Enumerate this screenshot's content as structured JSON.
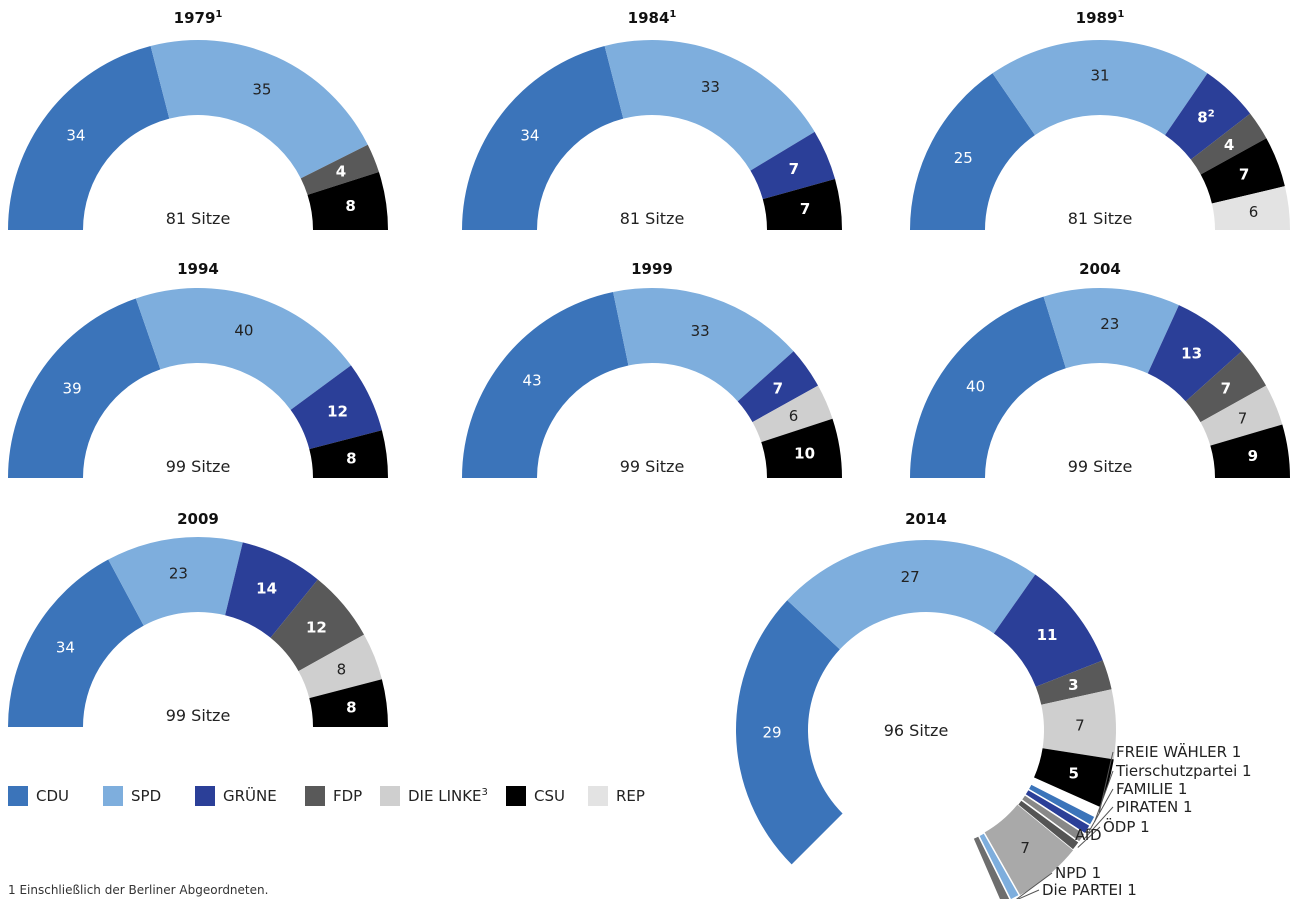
{
  "colors": {
    "CDU": "#3b74ba",
    "SPD": "#7eaedd",
    "GRÜNE": "#2b3f98",
    "FDP": "#595959",
    "DIE LINKE": "#cfcfcf",
    "CSU": "#000000",
    "REP": "#e3e3e3",
    "AfD": "#a9a9a9",
    "FREIE WÄHLER": "#ffffff",
    "Tierschutzpartei": "#3b74ba",
    "FAMILIE": "#2b3f98",
    "PIRATEN": "#888888",
    "ÖDP": "#555555",
    "NPD": "#7eaedd",
    "Die PARTEI": "#6e6e6e"
  },
  "legend": [
    {
      "key": "CDU",
      "label": "CDU",
      "sup": ""
    },
    {
      "key": "SPD",
      "label": "SPD",
      "sup": ""
    },
    {
      "key": "GRÜNE",
      "label": "GRÜNE",
      "sup": ""
    },
    {
      "key": "FDP",
      "label": "FDP",
      "sup": ""
    },
    {
      "key": "DIE LINKE",
      "label": "DIE LINKE",
      "sup": "3"
    },
    {
      "key": "CSU",
      "label": "CSU",
      "sup": ""
    },
    {
      "key": "REP",
      "label": "REP",
      "sup": ""
    }
  ],
  "footnote": "1  Einschließlich der Berliner Abgeordneten.",
  "chart_data": [
    {
      "type": "pie",
      "title": "1979",
      "title_sup": "1",
      "center_label": "81 Sitze",
      "slices": [
        {
          "party": "CDU",
          "value": 34
        },
        {
          "party": "SPD",
          "value": 35
        },
        {
          "party": "FDP",
          "value": 4
        },
        {
          "party": "CSU",
          "value": 8
        }
      ]
    },
    {
      "type": "pie",
      "title": "1984",
      "title_sup": "1",
      "center_label": "81 Sitze",
      "slices": [
        {
          "party": "CDU",
          "value": 34
        },
        {
          "party": "SPD",
          "value": 33
        },
        {
          "party": "GRÜNE",
          "value": 7
        },
        {
          "party": "CSU",
          "value": 7
        }
      ]
    },
    {
      "type": "pie",
      "title": "1989",
      "title_sup": "1",
      "center_label": "81 Sitze",
      "slices": [
        {
          "party": "CDU",
          "value": 25
        },
        {
          "party": "SPD",
          "value": 31
        },
        {
          "party": "GRÜNE",
          "value": 8,
          "label_sup": "2"
        },
        {
          "party": "FDP",
          "value": 4
        },
        {
          "party": "CSU",
          "value": 7
        },
        {
          "party": "REP",
          "value": 6
        }
      ]
    },
    {
      "type": "pie",
      "title": "1994",
      "title_sup": "",
      "center_label": "99 Sitze",
      "slices": [
        {
          "party": "CDU",
          "value": 39
        },
        {
          "party": "SPD",
          "value": 40
        },
        {
          "party": "GRÜNE",
          "value": 12
        },
        {
          "party": "CSU",
          "value": 8
        }
      ]
    },
    {
      "type": "pie",
      "title": "1999",
      "title_sup": "",
      "center_label": "99 Sitze",
      "slices": [
        {
          "party": "CDU",
          "value": 43
        },
        {
          "party": "SPD",
          "value": 33
        },
        {
          "party": "GRÜNE",
          "value": 7
        },
        {
          "party": "DIE LINKE",
          "value": 6
        },
        {
          "party": "CSU",
          "value": 10
        }
      ]
    },
    {
      "type": "pie",
      "title": "2004",
      "title_sup": "",
      "center_label": "99 Sitze",
      "slices": [
        {
          "party": "CDU",
          "value": 40
        },
        {
          "party": "SPD",
          "value": 23
        },
        {
          "party": "GRÜNE",
          "value": 13
        },
        {
          "party": "FDP",
          "value": 7
        },
        {
          "party": "DIE LINKE",
          "value": 7
        },
        {
          "party": "CSU",
          "value": 9
        }
      ]
    },
    {
      "type": "pie",
      "title": "2009",
      "title_sup": "",
      "center_label": "99 Sitze",
      "slices": [
        {
          "party": "CDU",
          "value": 34
        },
        {
          "party": "SPD",
          "value": 23
        },
        {
          "party": "GRÜNE",
          "value": 14
        },
        {
          "party": "FDP",
          "value": 12
        },
        {
          "party": "DIE LINKE",
          "value": 8
        },
        {
          "party": "CSU",
          "value": 8
        }
      ]
    },
    {
      "type": "pie",
      "title": "2014",
      "title_sup": "",
      "center_label": "96 Sitze",
      "slices": [
        {
          "party": "CDU",
          "value": 29
        },
        {
          "party": "SPD",
          "value": 27
        },
        {
          "party": "GRÜNE",
          "value": 11
        },
        {
          "party": "FDP",
          "value": 3
        },
        {
          "party": "DIE LINKE",
          "value": 7
        },
        {
          "party": "CSU",
          "value": 5
        },
        {
          "party": "FREIE WÄHLER",
          "value": 1,
          "callout": "FREIE WÄHLER 1"
        },
        {
          "party": "Tierschutzpartei",
          "value": 1,
          "callout": "Tierschutzpartei 1"
        },
        {
          "party": "FAMILIE",
          "value": 1,
          "callout": "FAMILIE 1"
        },
        {
          "party": "PIRATEN",
          "value": 1,
          "callout": "PIRATEN 1"
        },
        {
          "party": "ÖDP",
          "value": 1,
          "callout": "ÖDP 1"
        },
        {
          "party": "AfD",
          "value": 7,
          "callout": "AfD"
        },
        {
          "party": "NPD",
          "value": 1,
          "callout": "NPD 1"
        },
        {
          "party": "Die PARTEI",
          "value": 1,
          "callout": "Die PARTEI 1"
        }
      ]
    }
  ]
}
